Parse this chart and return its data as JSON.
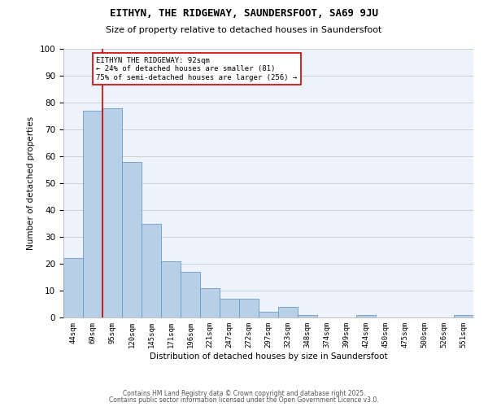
{
  "title1": "EITHYN, THE RIDGEWAY, SAUNDERSFOOT, SA69 9JU",
  "title2": "Size of property relative to detached houses in Saundersfoot",
  "xlabel": "Distribution of detached houses by size in Saundersfoot",
  "ylabel": "Number of detached properties",
  "categories": [
    "44sqm",
    "69sqm",
    "95sqm",
    "120sqm",
    "145sqm",
    "171sqm",
    "196sqm",
    "221sqm",
    "247sqm",
    "272sqm",
    "297sqm",
    "323sqm",
    "348sqm",
    "374sqm",
    "399sqm",
    "424sqm",
    "450sqm",
    "475sqm",
    "500sqm",
    "526sqm",
    "551sqm"
  ],
  "values": [
    22,
    77,
    78,
    58,
    35,
    21,
    17,
    11,
    7,
    7,
    2,
    4,
    1,
    0,
    0,
    1,
    0,
    0,
    0,
    0,
    1
  ],
  "bar_color": "#b8cfe8",
  "bar_edge_color": "#5b8ec4",
  "vline_x_index": 1.5,
  "vline_color": "#cc0000",
  "annotation_title": "EITHYN THE RIDGEWAY: 92sqm",
  "annotation_line2": "← 24% of detached houses are smaller (81)",
  "annotation_line3": "75% of semi-detached houses are larger (256) →",
  "annotation_box_color": "#ffffff",
  "annotation_box_edge": "#cc0000",
  "ylim": [
    0,
    100
  ],
  "yticks": [
    0,
    10,
    20,
    30,
    40,
    50,
    60,
    70,
    80,
    90,
    100
  ],
  "footer1": "Contains HM Land Registry data © Crown copyright and database right 2025.",
  "footer2": "Contains public sector information licensed under the Open Government Licence v3.0.",
  "bg_color": "#eef2fa",
  "grid_color": "#d0d0d0"
}
